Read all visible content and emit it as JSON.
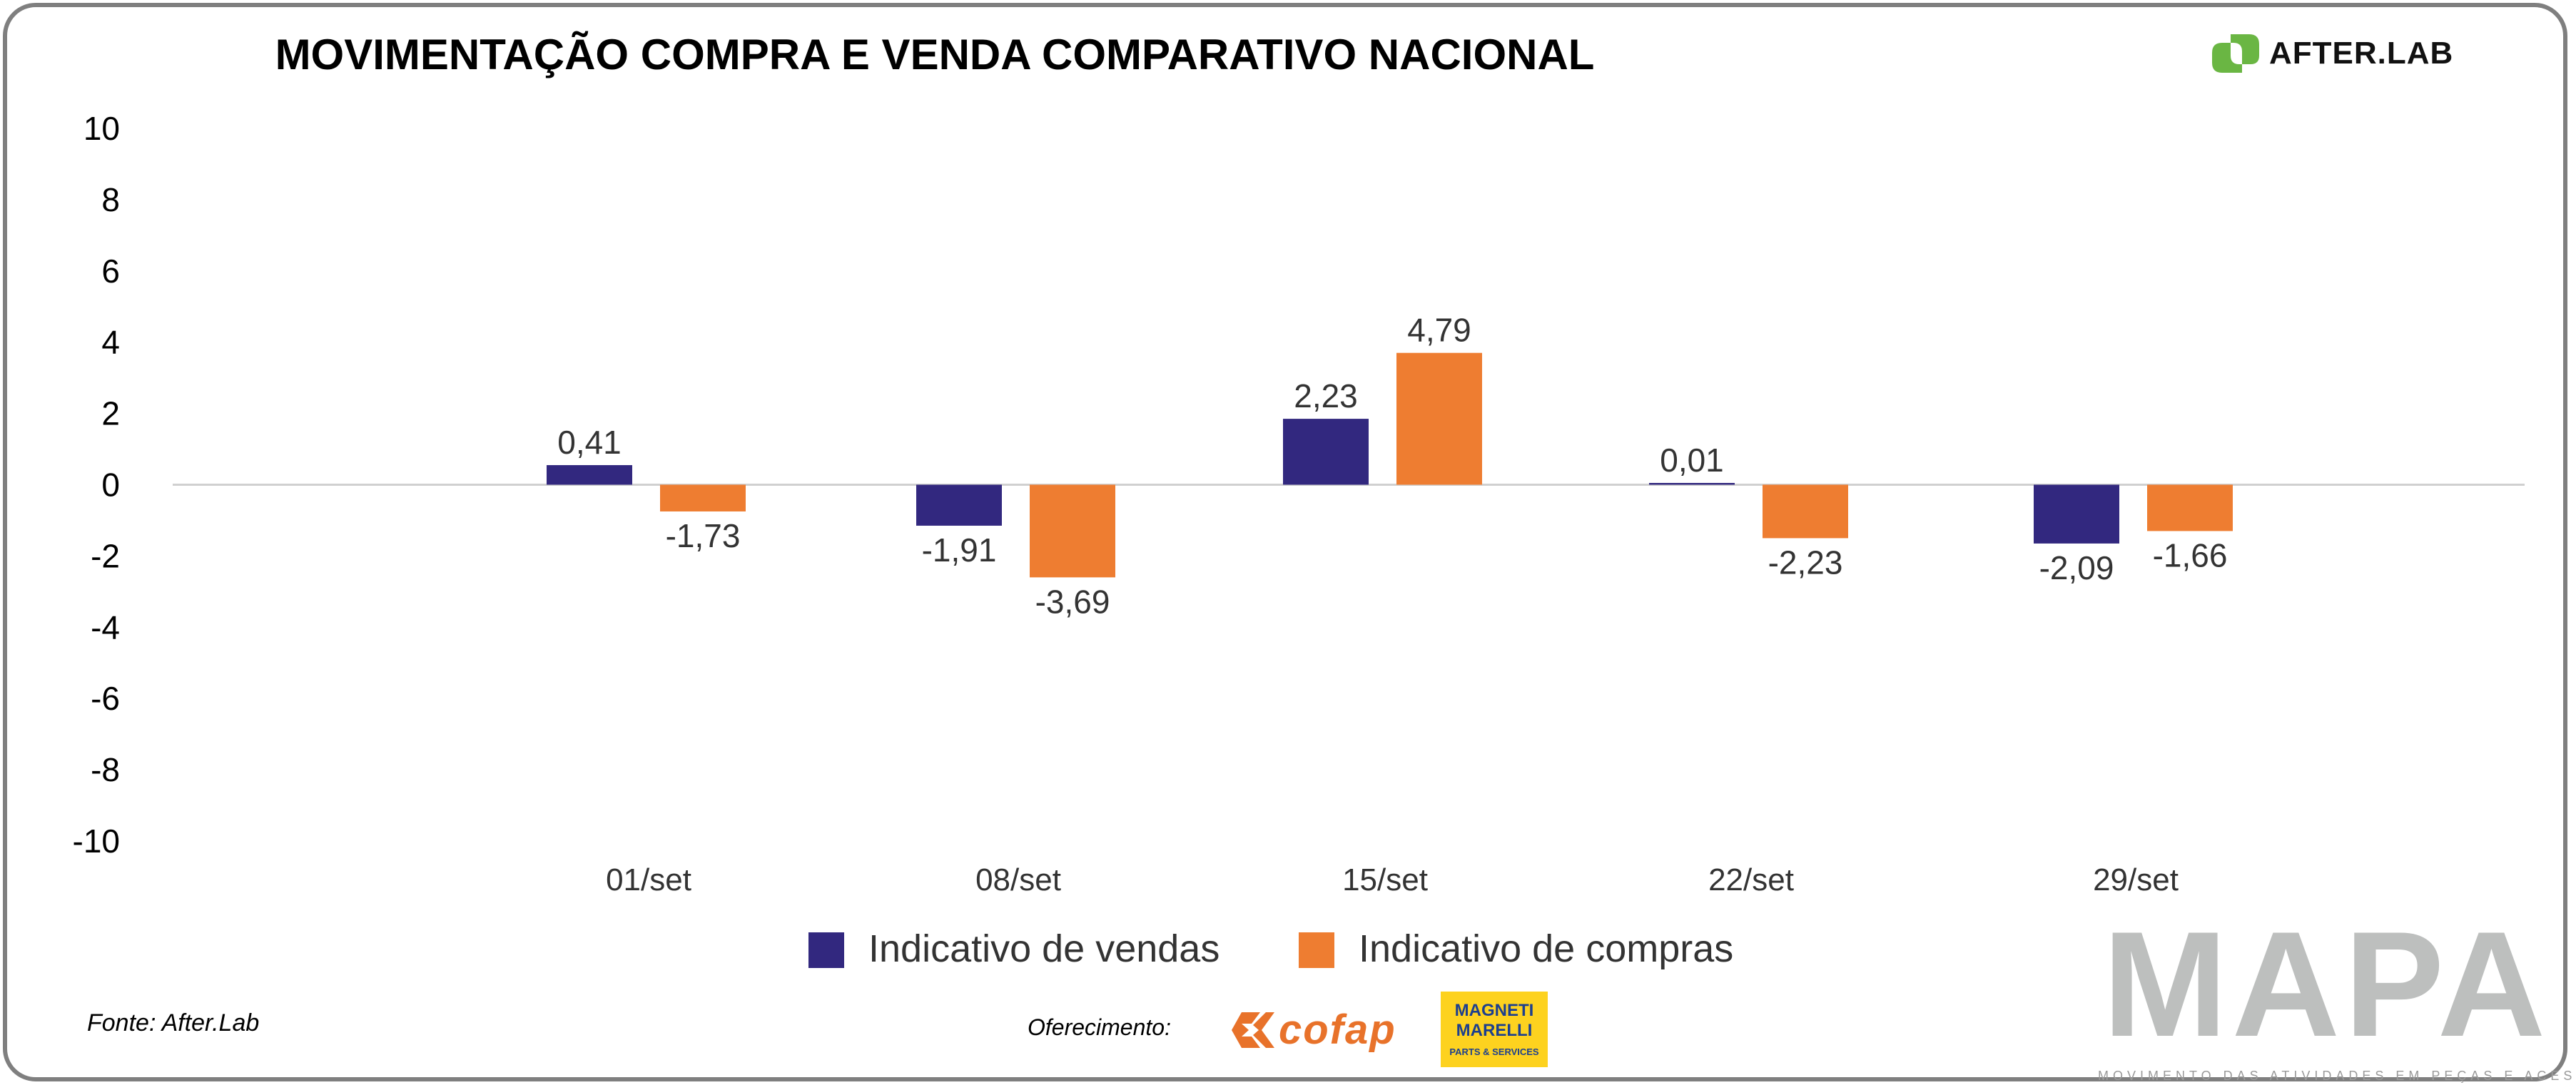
{
  "chart_data": {
    "type": "bar",
    "title": "MOVIMENTAÇÃO COMPRA E VENDA COMPARATIVO NACIONAL",
    "categories": [
      "01/set",
      "08/set",
      "15/set",
      "22/set",
      "29/set"
    ],
    "ylim": [
      -10,
      10
    ],
    "yticks": [
      "10",
      "8",
      "6",
      "4",
      "2",
      "0",
      "-2",
      "-4",
      "-6",
      "-8",
      "-10"
    ],
    "grid": false,
    "legend_position": "bottom",
    "series": [
      {
        "name": "Indicativo de vendas",
        "color": "#32287f",
        "data_labels": [
          "0,41",
          "-1,91",
          "2,23",
          "0,01",
          "-2,09"
        ],
        "values": [
          0.41,
          -1.91,
          2.23,
          0.01,
          -2.09
        ],
        "drawn_bar_values": [
          0.55,
          -1.15,
          1.85,
          0.05,
          -1.65
        ]
      },
      {
        "name": "Indicativo de compras",
        "color": "#ee7d31",
        "data_labels": [
          "-1,73",
          "-3,69",
          "4,79",
          "-2,23",
          "-1,66"
        ],
        "values": [
          -1.73,
          -3.69,
          4.79,
          -2.23,
          -1.66
        ],
        "drawn_bar_values": [
          -0.75,
          -2.6,
          3.7,
          -1.5,
          -1.3
        ]
      }
    ]
  },
  "branding": {
    "afterlab": "AFTER.LAB",
    "afterlab_color": "#6ab643",
    "source": "Fonte: After.Lab",
    "offer_label": "Oferecimento:",
    "cofap": "cofap",
    "magneti_marelli": "MAGNETI MARELLI",
    "magneti_marelli_sub": "PARTS & SERVICES",
    "mapa": "MAPA",
    "mapa_sub": "MOVIMENTO DAS ATIVIDADES EM PEÇAS E ACESSORIOS"
  }
}
